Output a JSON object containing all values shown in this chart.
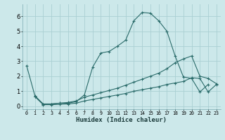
{
  "xlabel": "Humidex (Indice chaleur)",
  "background_color": "#cce8ea",
  "grid_color": "#aacfd3",
  "line_color": "#2a6b6a",
  "xlim": [
    -0.5,
    23.5
  ],
  "ylim": [
    -0.2,
    6.8
  ],
  "yticks": [
    0,
    1,
    2,
    3,
    4,
    5,
    6
  ],
  "xticks": [
    0,
    1,
    2,
    3,
    4,
    5,
    6,
    7,
    8,
    9,
    10,
    11,
    12,
    13,
    14,
    15,
    16,
    17,
    18,
    19,
    20,
    21,
    22,
    23
  ],
  "lines": [
    {
      "x": [
        0,
        1,
        2,
        3,
        4,
        5,
        6,
        7,
        8,
        9,
        10,
        11,
        12,
        13,
        14,
        15,
        16,
        17,
        18,
        19,
        20,
        21,
        22
      ],
      "y": [
        2.7,
        0.7,
        0.15,
        0.15,
        0.2,
        0.2,
        0.3,
        0.75,
        2.6,
        3.55,
        3.65,
        4.0,
        4.4,
        5.7,
        6.25,
        6.2,
        5.7,
        5.0,
        3.35,
        1.95,
        1.85,
        0.95,
        1.45
      ]
    },
    {
      "x": [
        1,
        2,
        3,
        4,
        5,
        6,
        7,
        8,
        9,
        10,
        11,
        12,
        13,
        14,
        15,
        16,
        17,
        18,
        19,
        20,
        21,
        22,
        23
      ],
      "y": [
        0.65,
        0.15,
        0.15,
        0.2,
        0.25,
        0.35,
        0.6,
        0.75,
        0.9,
        1.05,
        1.2,
        1.4,
        1.6,
        1.8,
        2.0,
        2.2,
        2.5,
        2.9,
        3.15,
        3.35,
        2.0,
        1.85,
        1.5
      ]
    },
    {
      "x": [
        1,
        2,
        3,
        4,
        5,
        6,
        7,
        8,
        9,
        10,
        11,
        12,
        13,
        14,
        15,
        16,
        17,
        18,
        19,
        20,
        21,
        22,
        23
      ],
      "y": [
        0.65,
        0.1,
        0.1,
        0.12,
        0.15,
        0.2,
        0.35,
        0.45,
        0.55,
        0.65,
        0.75,
        0.85,
        1.0,
        1.1,
        1.2,
        1.3,
        1.45,
        1.55,
        1.65,
        1.9,
        1.85,
        0.95,
        1.45
      ]
    }
  ]
}
